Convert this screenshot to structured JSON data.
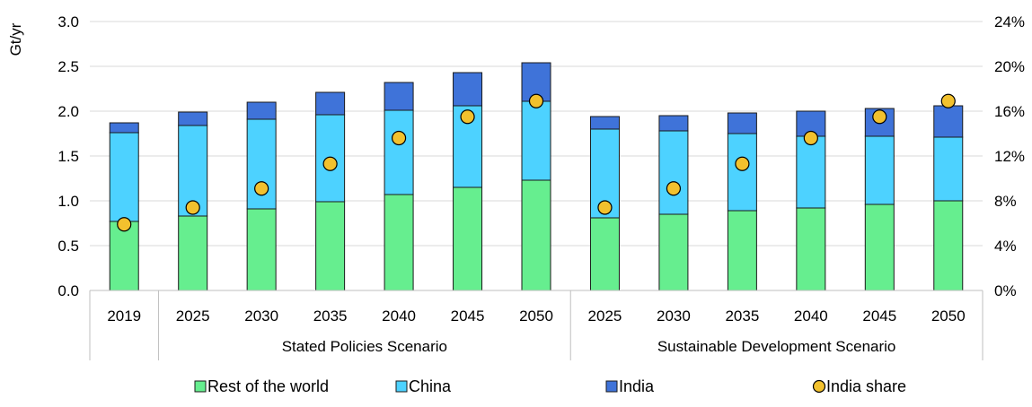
{
  "chart_data": {
    "type": "bar",
    "stacked": true,
    "groups": [
      {
        "label": "",
        "categories": [
          "2019"
        ]
      },
      {
        "label": "Stated Policies Scenario",
        "categories": [
          "2025",
          "2030",
          "2035",
          "2040",
          "2045",
          "2050"
        ]
      },
      {
        "label": "Sustainable Development Scenario",
        "categories": [
          "2025",
          "2030",
          "2035",
          "2040",
          "2045",
          "2050"
        ]
      }
    ],
    "categories": [
      "2019",
      "2025",
      "2030",
      "2035",
      "2040",
      "2045",
      "2050",
      "2025",
      "2030",
      "2035",
      "2040",
      "2045",
      "2050"
    ],
    "series": [
      {
        "name": "Rest of the world",
        "color": "#66ee8f",
        "axis": "left",
        "values": [
          0.77,
          0.83,
          0.91,
          0.99,
          1.07,
          1.15,
          1.23,
          0.81,
          0.85,
          0.89,
          0.92,
          0.96,
          1.0
        ]
      },
      {
        "name": "China",
        "color": "#4dd2ff",
        "axis": "left",
        "values": [
          0.99,
          1.01,
          1.0,
          0.97,
          0.94,
          0.91,
          0.88,
          0.99,
          0.93,
          0.86,
          0.8,
          0.76,
          0.71
        ]
      },
      {
        "name": "India",
        "color": "#3f73d9",
        "axis": "left",
        "values": [
          0.11,
          0.15,
          0.19,
          0.25,
          0.31,
          0.37,
          0.43,
          0.14,
          0.17,
          0.23,
          0.28,
          0.31,
          0.35
        ]
      },
      {
        "name": "India share",
        "type": "scatter",
        "color": "#f2c12e",
        "axis": "right",
        "values": [
          0.059,
          0.074,
          0.091,
          0.113,
          0.136,
          0.155,
          0.169,
          0.074,
          0.091,
          0.113,
          0.136,
          0.155,
          0.169
        ]
      }
    ],
    "ylabel": "Gt/yr",
    "xlabel": "",
    "ylim": [
      0,
      3.0
    ],
    "yticks": [
      "0.0",
      "0.5",
      "1.0",
      "1.5",
      "2.0",
      "2.5",
      "3.0"
    ],
    "y2lim": [
      0,
      0.24
    ],
    "y2ticks": [
      "0%",
      "4%",
      "8%",
      "12%",
      "16%",
      "20%",
      "24%"
    ],
    "grid": true,
    "legend_position": "bottom"
  }
}
